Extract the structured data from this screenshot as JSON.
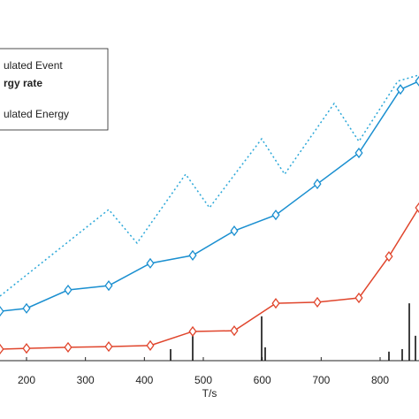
{
  "chart_data": {
    "type": "line",
    "x_label": "T/s",
    "xlim": [
      155,
      866
    ],
    "xticks": [
      200,
      300,
      400,
      500,
      600,
      700,
      800
    ],
    "ylim": [
      0,
      100
    ],
    "legend": "upper left",
    "series": [
      {
        "name": "ulated  Event",
        "color": "#2aa7d8",
        "dash": "dotted",
        "x": [
          155,
          339.5,
          387.5,
          470,
          510.5,
          599,
          638,
          722,
          764,
          830,
          866
        ],
        "values": [
          17.9,
          41.9,
          32.6,
          51.7,
          42.4,
          61.5,
          51.7,
          71.3,
          60.8,
          77.5,
          79.2
        ]
      },
      {
        "name": "rgy rate",
        "color": "#111111",
        "kind": "stem",
        "x": [
          444.5,
          482,
          599,
          605,
          815,
          837.5,
          849.5,
          860
        ],
        "values": [
          3.2,
          6.9,
          12.3,
          3.7,
          2.5,
          3.2,
          15.9,
          6.9
        ]
      },
      {
        "name": "ulated Energy",
        "color": "#1a8fd0",
        "marker": "diamond",
        "x": [
          155,
          200,
          270.5,
          339.5,
          410,
          482,
          552.5,
          623,
          693.5,
          764,
          834.5,
          866
        ],
        "values": [
          13.7,
          14.5,
          19.6,
          20.8,
          27,
          29.2,
          36,
          40.4,
          49,
          57.6,
          75.2,
          77.5
        ]
      },
      {
        "color": "#e0452c",
        "marker": "diamond",
        "x": [
          155,
          200,
          270.5,
          339.5,
          410,
          482,
          552.5,
          623,
          693.5,
          764,
          815,
          866
        ],
        "values": [
          3.2,
          3.4,
          3.7,
          3.9,
          4.2,
          8.1,
          8.3,
          15.9,
          16.2,
          17.4,
          28.9,
          42.4
        ]
      }
    ]
  }
}
